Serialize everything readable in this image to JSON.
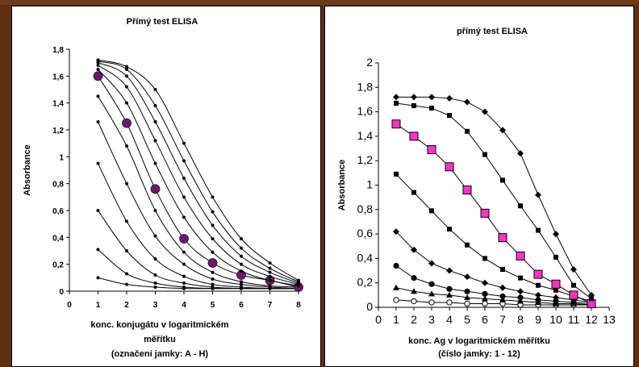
{
  "chart_data": [
    {
      "type": "line",
      "title": "Přímý  test ELISA",
      "ylabel": "Absorbance",
      "xlabel": [
        "konc. konjugátu v logaritmickém",
        "měřítku",
        "(označení jamky: A - H)"
      ],
      "x": [
        1,
        2,
        3,
        4,
        5,
        6,
        7,
        8
      ],
      "xticks": [
        "0",
        "1",
        "2",
        "3",
        "4",
        "5",
        "6",
        "7",
        "8"
      ],
      "yticks": [
        "0",
        "0,2",
        "0,4",
        "0,6",
        "0,8",
        "1",
        "1,2",
        "1,4",
        "1,6",
        "1,8"
      ],
      "xlim": [
        0,
        8
      ],
      "ylim": [
        0,
        1.8
      ],
      "grid": false,
      "highlight_color": "#6b1a6b",
      "series": [
        {
          "values": [
            0.1,
            0.05,
            0.03,
            0.02,
            0.02,
            0.02,
            0.02,
            0.02
          ]
        },
        {
          "values": [
            0.31,
            0.13,
            0.06,
            0.03,
            0.02,
            0.02,
            0.02,
            0.02
          ]
        },
        {
          "values": [
            0.6,
            0.3,
            0.12,
            0.06,
            0.03,
            0.02,
            0.02,
            0.02
          ]
        },
        {
          "values": [
            0.95,
            0.52,
            0.24,
            0.11,
            0.05,
            0.03,
            0.02,
            0.02
          ]
        },
        {
          "values": [
            1.26,
            0.8,
            0.41,
            0.2,
            0.09,
            0.05,
            0.03,
            0.02
          ]
        },
        {
          "values": [
            1.45,
            1.08,
            0.6,
            0.29,
            0.14,
            0.07,
            0.04,
            0.03
          ]
        },
        {
          "values": [
            1.6,
            1.25,
            0.76,
            0.39,
            0.21,
            0.12,
            0.08,
            0.03
          ],
          "highlight": true
        },
        {
          "values": [
            1.65,
            1.4,
            0.95,
            0.55,
            0.29,
            0.15,
            0.08,
            0.04
          ]
        },
        {
          "values": [
            1.68,
            1.52,
            1.12,
            0.7,
            0.39,
            0.2,
            0.11,
            0.05
          ]
        },
        {
          "values": [
            1.7,
            1.6,
            1.26,
            0.84,
            0.49,
            0.26,
            0.14,
            0.06
          ]
        },
        {
          "values": [
            1.71,
            1.65,
            1.38,
            0.97,
            0.59,
            0.32,
            0.17,
            0.07
          ]
        },
        {
          "values": [
            1.72,
            1.67,
            1.5,
            1.1,
            0.7,
            0.39,
            0.21,
            0.08
          ]
        }
      ]
    },
    {
      "type": "line",
      "title": "přímý test ELISA",
      "ylabel": "Absorbance",
      "xlabel": [
        "konc. Ag v logaritmickém měřítku",
        "(číslo jamky: 1 - 12)"
      ],
      "x": [
        1,
        2,
        3,
        4,
        5,
        6,
        7,
        8,
        9,
        10,
        11,
        12
      ],
      "xticks": [
        "0",
        "1",
        "2",
        "3",
        "4",
        "5",
        "6",
        "7",
        "8",
        "9",
        "10",
        "11",
        "12",
        "13"
      ],
      "yticks": [
        "0",
        "0,2",
        "0,4",
        "0,6",
        "0,8",
        "1",
        "1,2",
        "1,4",
        "1,6",
        "1,8",
        "2"
      ],
      "xlim": [
        0,
        13
      ],
      "ylim": [
        0,
        2
      ],
      "grid": false,
      "highlight_color": "#ff33cc",
      "series": [
        {
          "marker": "circle-open",
          "values": [
            0.06,
            0.05,
            0.04,
            0.04,
            0.03,
            0.03,
            0.03,
            0.02,
            0.02,
            0.02,
            0.02,
            0.02
          ]
        },
        {
          "marker": "triangle",
          "values": [
            0.16,
            0.13,
            0.11,
            0.1,
            0.08,
            0.07,
            0.06,
            0.05,
            0.04,
            0.03,
            0.03,
            0.02
          ]
        },
        {
          "marker": "circle",
          "values": [
            0.34,
            0.24,
            0.19,
            0.15,
            0.13,
            0.11,
            0.09,
            0.08,
            0.06,
            0.05,
            0.04,
            0.03
          ]
        },
        {
          "marker": "diamond",
          "values": [
            0.62,
            0.47,
            0.36,
            0.3,
            0.25,
            0.2,
            0.16,
            0.13,
            0.1,
            0.08,
            0.06,
            0.04
          ]
        },
        {
          "marker": "square-small",
          "values": [
            1.09,
            0.94,
            0.79,
            0.64,
            0.51,
            0.4,
            0.31,
            0.24,
            0.18,
            0.14,
            0.09,
            0.05
          ]
        },
        {
          "marker": "square-highlight",
          "highlight": true,
          "values": [
            1.5,
            1.4,
            1.29,
            1.15,
            0.96,
            0.77,
            0.57,
            0.42,
            0.27,
            0.19,
            0.1,
            0.03
          ]
        },
        {
          "marker": "square-small",
          "values": [
            1.67,
            1.65,
            1.63,
            1.57,
            1.44,
            1.25,
            1.04,
            0.83,
            0.63,
            0.41,
            0.18,
            0.07
          ]
        },
        {
          "marker": "diamond",
          "values": [
            1.72,
            1.72,
            1.72,
            1.71,
            1.68,
            1.6,
            1.45,
            1.26,
            0.92,
            0.6,
            0.31,
            0.1
          ]
        }
      ]
    }
  ]
}
